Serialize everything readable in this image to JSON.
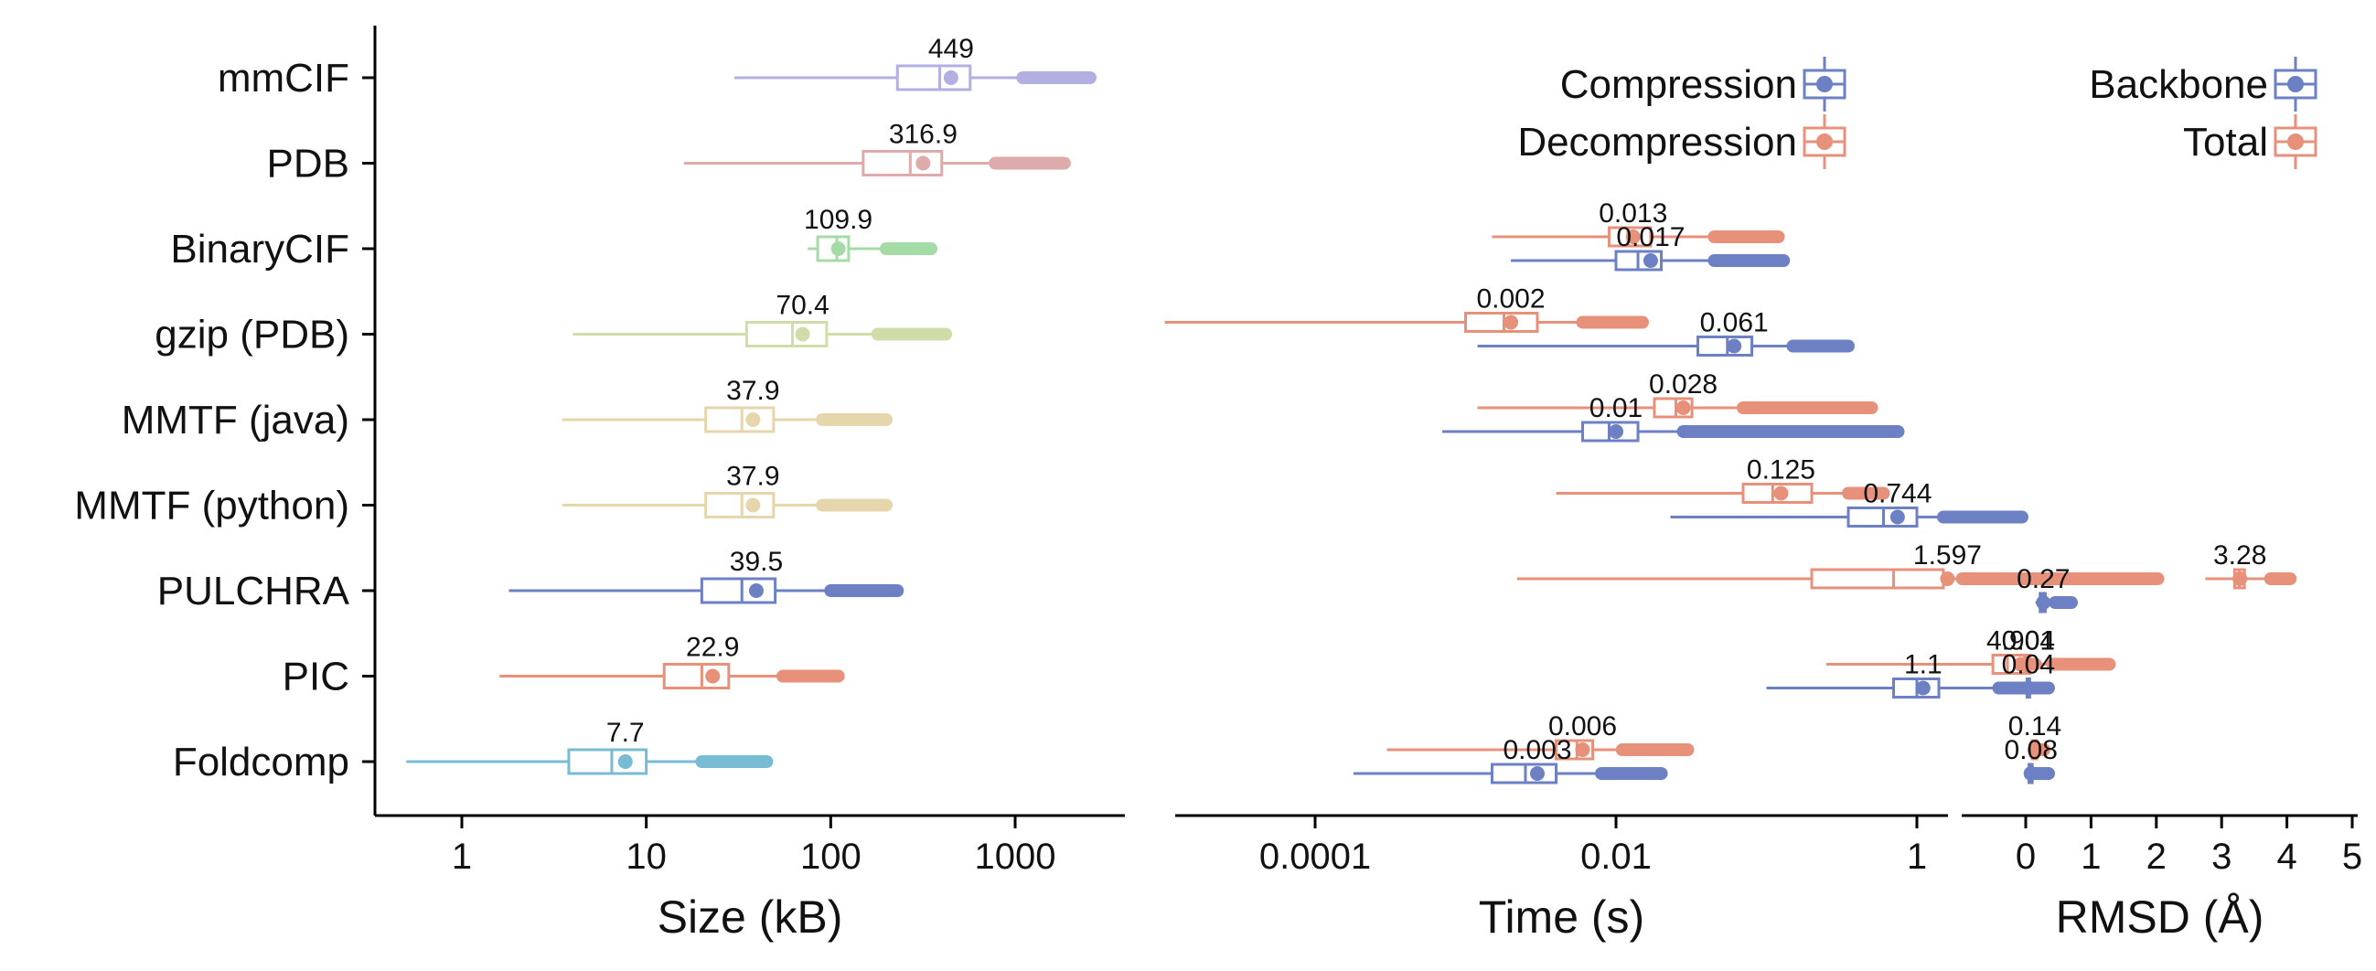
{
  "categories": [
    "mmCIF",
    "PDB",
    "BinaryCIF",
    "gzip (PDB)",
    "MMTF (java)",
    "MMTF (python)",
    "PULCHRA",
    "PIC",
    "Foldcomp"
  ],
  "colors": {
    "mmCIF": "#b2b0e2",
    "PDB": "#deabab",
    "BinaryCIF": "#a5dca5",
    "gzip (PDB)": "#cfdea9",
    "MMTF (java)": "#e6d6ac",
    "MMTF (python)": "#e6d6ac",
    "PULCHRA": "#6d80c4",
    "PIC": "#e8917a",
    "Foldcomp": "#78bcd4",
    "compression": "#6d80c4",
    "decompression": "#e8917a"
  },
  "chart_data": [
    {
      "type": "boxplot",
      "panel": "size",
      "xlabel": "Size (kB)",
      "xscale": "log",
      "xlim": [
        0.5,
        2600
      ],
      "xticks": [
        1,
        10,
        100,
        1000
      ],
      "xtick_labels": [
        "1",
        "10",
        "100",
        "1000"
      ],
      "series": [
        {
          "name": "mmCIF",
          "whisker_low": 30,
          "q1": 230,
          "median": 390,
          "q3": 570,
          "whisker_high": 1100,
          "mean": 449,
          "outlier_max": 2550,
          "label": "449"
        },
        {
          "name": "PDB",
          "whisker_low": 16,
          "q1": 150,
          "median": 270,
          "q3": 400,
          "whisker_high": 780,
          "mean": 316.9,
          "outlier_max": 1850,
          "label": "316.9"
        },
        {
          "name": "BinaryCIF",
          "whisker_low": 75,
          "q1": 85,
          "median": 108,
          "q3": 125,
          "whisker_high": 200,
          "mean": 109.9,
          "outlier_max": 350,
          "label": "109.9"
        },
        {
          "name": "gzip (PDB)",
          "whisker_low": 4,
          "q1": 35,
          "median": 62,
          "q3": 95,
          "whisker_high": 180,
          "mean": 70.4,
          "outlier_max": 420,
          "label": "70.4"
        },
        {
          "name": "MMTF (java)",
          "whisker_low": 3.5,
          "q1": 21,
          "median": 33,
          "q3": 49,
          "whisker_high": 90,
          "mean": 37.9,
          "outlier_max": 200,
          "label": "37.9"
        },
        {
          "name": "MMTF (python)",
          "whisker_low": 3.5,
          "q1": 21,
          "median": 33,
          "q3": 49,
          "whisker_high": 90,
          "mean": 37.9,
          "outlier_max": 200,
          "label": "37.9"
        },
        {
          "name": "PULCHRA",
          "whisker_low": 1.8,
          "q1": 20,
          "median": 33,
          "q3": 50,
          "whisker_high": 100,
          "mean": 39.5,
          "outlier_max": 230,
          "label": "39.5"
        },
        {
          "name": "PIC",
          "whisker_low": 1.6,
          "q1": 12.5,
          "median": 20,
          "q3": 28,
          "whisker_high": 55,
          "mean": 22.9,
          "outlier_max": 110,
          "label": "22.9"
        },
        {
          "name": "Foldcomp",
          "whisker_low": 0.5,
          "q1": 3.8,
          "median": 6.5,
          "q3": 10,
          "whisker_high": 20,
          "mean": 7.7,
          "outlier_max": 45,
          "label": "7.7"
        }
      ]
    },
    {
      "type": "boxplot",
      "panel": "time",
      "xlabel": "Time (s)",
      "xscale": "log",
      "xlim": [
        5e-06,
        8
      ],
      "xticks": [
        0.0001,
        0.01,
        1
      ],
      "xtick_labels": [
        "0.0001",
        "0.01",
        "1"
      ],
      "legend": {
        "position": "top-right",
        "entries": [
          "Compression",
          "Decompression"
        ]
      },
      "series": [
        {
          "name": "BinaryCIF",
          "group": "Decompression",
          "whisker_low": 0.0015,
          "q1": 0.009,
          "median": 0.012,
          "q3": 0.017,
          "whisker_high": 0.045,
          "mean": 0.013,
          "outlier_max": 0.12,
          "label": "0.013"
        },
        {
          "name": "BinaryCIF",
          "group": "Compression",
          "whisker_low": 0.002,
          "q1": 0.01,
          "median": 0.014,
          "q3": 0.02,
          "whisker_high": 0.045,
          "mean": 0.017,
          "outlier_max": 0.13,
          "label": "0.017"
        },
        {
          "name": "gzip (PDB)",
          "group": "Decompression",
          "whisker_low": 1e-05,
          "q1": 0.001,
          "median": 0.0018,
          "q3": 0.003,
          "whisker_high": 0.006,
          "mean": 0.002,
          "outlier_max": 0.015,
          "label": "0.002"
        },
        {
          "name": "gzip (PDB)",
          "group": "Compression",
          "whisker_low": 0.0012,
          "q1": 0.035,
          "median": 0.055,
          "q3": 0.08,
          "whisker_high": 0.15,
          "mean": 0.061,
          "outlier_max": 0.35,
          "label": "0.061"
        },
        {
          "name": "MMTF (java)",
          "group": "Decompression",
          "whisker_low": 0.0012,
          "q1": 0.018,
          "median": 0.025,
          "q3": 0.032,
          "whisker_high": 0.07,
          "mean": 0.028,
          "outlier_max": 0.5,
          "label": "0.028"
        },
        {
          "name": "MMTF (java)",
          "group": "Compression",
          "whisker_low": 0.0007,
          "q1": 0.006,
          "median": 0.009,
          "q3": 0.014,
          "whisker_high": 0.028,
          "mean": 0.01,
          "outlier_max": 0.75,
          "label": "0.01"
        },
        {
          "name": "MMTF (python)",
          "group": "Decompression",
          "whisker_low": 0.004,
          "q1": 0.07,
          "median": 0.11,
          "q3": 0.2,
          "whisker_high": 0.35,
          "mean": 0.125,
          "outlier_max": 0.6,
          "label": "0.125"
        },
        {
          "name": "MMTF (python)",
          "group": "Compression",
          "whisker_low": 0.023,
          "q1": 0.35,
          "median": 0.6,
          "q3": 1,
          "whisker_high": 1.5,
          "mean": 0.744,
          "outlier_max": 5,
          "label": "0.744"
        },
        {
          "name": "PULCHRA",
          "group": "Decompression",
          "whisker_low": 0.0022,
          "q1": 0.2,
          "median": 0.7,
          "q3": 1.5,
          "whisker_high": 2,
          "mean": 1.597,
          "outlier_max": 40,
          "label": "1.597"
        },
        {
          "name": "PIC",
          "group": "Decompression",
          "whisker_low": 0.25,
          "q1": 3.2,
          "median": 4,
          "q3": 5.2,
          "whisker_high": 8,
          "mean": 4.901,
          "outlier_max": 19,
          "label": "4.901"
        },
        {
          "name": "PIC",
          "group": "Compression",
          "whisker_low": 0.1,
          "q1": 0.7,
          "median": 1,
          "q3": 1.4,
          "whisker_high": 3.5,
          "mean": 1.1,
          "outlier_max": 7.5,
          "label": "1.1"
        },
        {
          "name": "Foldcomp",
          "group": "Decompression",
          "whisker_low": 0.0003,
          "q1": 0.004,
          "median": 0.0055,
          "q3": 0.007,
          "whisker_high": 0.011,
          "mean": 0.006,
          "outlier_max": 0.03,
          "label": "0.006"
        },
        {
          "name": "Foldcomp",
          "group": "Compression",
          "whisker_low": 0.00018,
          "q1": 0.0015,
          "median": 0.0025,
          "q3": 0.004,
          "whisker_high": 0.008,
          "mean": 0.003,
          "outlier_max": 0.02,
          "label": "0.003"
        }
      ]
    },
    {
      "type": "boxplot",
      "panel": "rmsd",
      "xlabel": "RMSD (Å)",
      "xscale": "linear",
      "xlim": [
        -1,
        5
      ],
      "xticks": [
        0,
        1,
        2,
        3,
        4,
        5
      ],
      "xtick_labels": [
        "0",
        "1",
        "2",
        "3",
        "4",
        "5"
      ],
      "legend": {
        "position": "top-right",
        "entries": [
          "Backbone",
          "Total"
        ]
      },
      "series": [
        {
          "name": "PULCHRA",
          "group": "Total",
          "whisker_low": 2.75,
          "q1": 3.2,
          "median": 3.27,
          "q3": 3.35,
          "whisker_high": 3.75,
          "mean": 3.28,
          "outlier_max": 4.05,
          "label": "3.28"
        },
        {
          "name": "PULCHRA",
          "group": "Backbone",
          "whisker_low": 0.15,
          "q1": 0.22,
          "median": 0.26,
          "q3": 0.3,
          "whisker_high": 0.45,
          "mean": 0.27,
          "outlier_max": 0.7,
          "label": "0.27"
        },
        {
          "name": "PIC",
          "group": "Total",
          "whisker_low": 0.0,
          "q1": 0.02,
          "median": 0.04,
          "q3": 0.06,
          "whisker_high": 0.1,
          "mean": 0.04,
          "outlier_max": 0.15,
          "label": "0.04"
        },
        {
          "name": "PIC",
          "group": "Backbone",
          "whisker_low": 0.0,
          "q1": 0.02,
          "median": 0.04,
          "q3": 0.06,
          "whisker_high": 0.1,
          "mean": 0.04,
          "outlier_max": 0.15,
          "label": "0.04"
        },
        {
          "name": "Foldcomp",
          "group": "Total",
          "whisker_low": 0.06,
          "q1": 0.1,
          "median": 0.13,
          "q3": 0.17,
          "whisker_high": 0.22,
          "mean": 0.14,
          "outlier_max": 0.28,
          "label": "0.14"
        },
        {
          "name": "Foldcomp",
          "group": "Backbone",
          "whisker_low": 0.02,
          "q1": 0.05,
          "median": 0.07,
          "q3": 0.1,
          "whisker_high": 0.15,
          "mean": 0.08,
          "outlier_max": 0.35,
          "label": "0.08"
        }
      ]
    }
  ]
}
